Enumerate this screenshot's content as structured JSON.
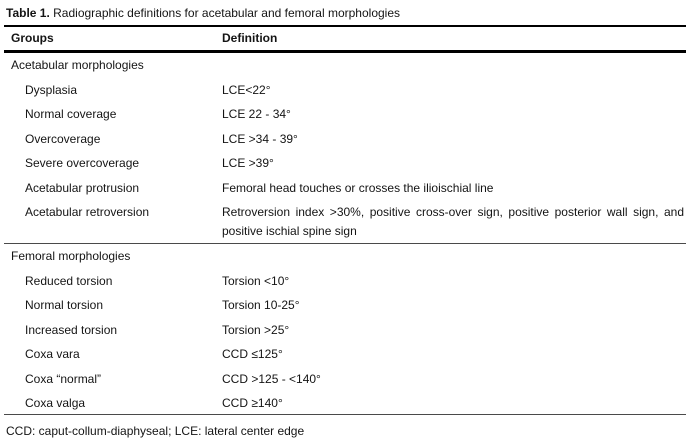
{
  "title": {
    "bold": "Table 1.",
    "rest": "Radiographic definitions for acetabular and femoral morphologies"
  },
  "table": {
    "columns": [
      "Groups",
      "Definition"
    ],
    "sections": [
      {
        "heading": "Acetabular morphologies",
        "rows": [
          {
            "group": "Dysplasia",
            "definition": "LCE<22°"
          },
          {
            "group": "Normal coverage",
            "definition": "LCE 22 - 34°"
          },
          {
            "group": "Overcoverage",
            "definition": "LCE >34 - 39°"
          },
          {
            "group": "Severe overcoverage",
            "definition": "LCE >39°"
          },
          {
            "group": "Acetabular protrusion",
            "definition": "Femoral head touches or crosses the ilioischial line"
          },
          {
            "group": "Acetabular retroversion",
            "definition": "Retroversion index >30%, positive cross-over sign, positive posterior wall sign, and positive ischial spine sign"
          }
        ]
      },
      {
        "heading": "Femoral morphologies",
        "rows": [
          {
            "group": "Reduced torsion",
            "definition": "Torsion <10°"
          },
          {
            "group": "Normal torsion",
            "definition": "Torsion 10-25°"
          },
          {
            "group": "Increased torsion",
            "definition": "Torsion >25°"
          },
          {
            "group": "Coxa vara",
            "definition": "CCD ≤125°"
          },
          {
            "group": "Coxa “normal”",
            "definition": "CCD >125 - <140°"
          },
          {
            "group": "Coxa valga",
            "definition": "CCD ≥140°"
          }
        ]
      }
    ]
  },
  "footnote": "CCD: caput-collum-diaphyseal; LCE: lateral center edge"
}
